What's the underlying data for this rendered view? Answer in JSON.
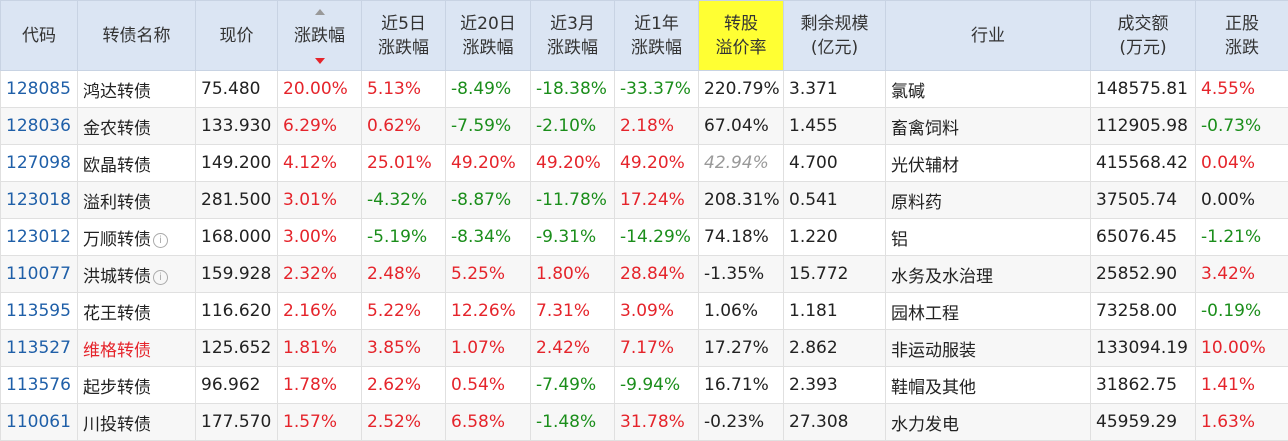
{
  "table": {
    "headers": [
      [
        "代码"
      ],
      [
        "转债名称"
      ],
      [
        "现价"
      ],
      [
        "涨跌幅"
      ],
      [
        "近5日",
        "涨跌幅"
      ],
      [
        "近20日",
        "涨跌幅"
      ],
      [
        "近3月",
        "涨跌幅"
      ],
      [
        "近1年",
        "涨跌幅"
      ],
      [
        "转股",
        "溢价率"
      ],
      [
        "剩余规模",
        "(亿元)"
      ],
      [
        "行业"
      ],
      [
        "成交额",
        "(万元)"
      ],
      [
        "正股",
        "涨跌"
      ]
    ],
    "rows": [
      [
        "128085",
        "鸿达转债",
        "75.480",
        "20.00%",
        "5.13%",
        "-8.49%",
        "-18.38%",
        "-33.37%",
        "220.79%",
        "3.371",
        "氯碱",
        "148575.81",
        "4.55%"
      ],
      [
        "128036",
        "金农转债",
        "133.930",
        "6.29%",
        "0.62%",
        "-7.59%",
        "-2.10%",
        "2.18%",
        "67.04%",
        "1.455",
        "畜禽饲料",
        "112905.98",
        "-0.73%"
      ],
      [
        "127098",
        "欧晶转债",
        "149.200",
        "4.12%",
        "25.01%",
        "49.20%",
        "49.20%",
        "49.20%",
        "42.94%",
        "4.700",
        "光伏辅材",
        "415568.42",
        "0.04%"
      ],
      [
        "123018",
        "溢利转债",
        "281.500",
        "3.01%",
        "-4.32%",
        "-8.87%",
        "-11.78%",
        "17.24%",
        "208.31%",
        "0.541",
        "原料药",
        "37505.74",
        "0.00%"
      ],
      [
        "123012",
        "万顺转债",
        "168.000",
        "3.00%",
        "-5.19%",
        "-8.34%",
        "-9.31%",
        "-14.29%",
        "74.18%",
        "1.220",
        "铝",
        "65076.45",
        "-1.21%"
      ],
      [
        "110077",
        "洪城转债",
        "159.928",
        "2.32%",
        "2.48%",
        "5.25%",
        "1.80%",
        "28.84%",
        "-1.35%",
        "15.772",
        "水务及水治理",
        "25852.90",
        "3.42%"
      ],
      [
        "113595",
        "花王转债",
        "116.620",
        "2.16%",
        "5.22%",
        "12.26%",
        "7.31%",
        "3.09%",
        "1.06%",
        "1.181",
        "园林工程",
        "73258.00",
        "-0.19%"
      ],
      [
        "113527",
        "维格转债",
        "125.652",
        "1.81%",
        "3.85%",
        "1.07%",
        "2.42%",
        "7.17%",
        "17.27%",
        "2.862",
        "非运动服装",
        "133094.19",
        "10.00%"
      ],
      [
        "113576",
        "起步转债",
        "96.962",
        "1.78%",
        "2.62%",
        "0.54%",
        "-7.49%",
        "-9.94%",
        "16.71%",
        "2.393",
        "鞋帽及其他",
        "31862.75",
        "1.41%"
      ],
      [
        "110061",
        "川投转债",
        "177.570",
        "1.57%",
        "2.52%",
        "6.58%",
        "-1.48%",
        "31.78%",
        "-0.23%",
        "27.308",
        "水力发电",
        "45959.29",
        "1.63%"
      ]
    ]
  }
}
